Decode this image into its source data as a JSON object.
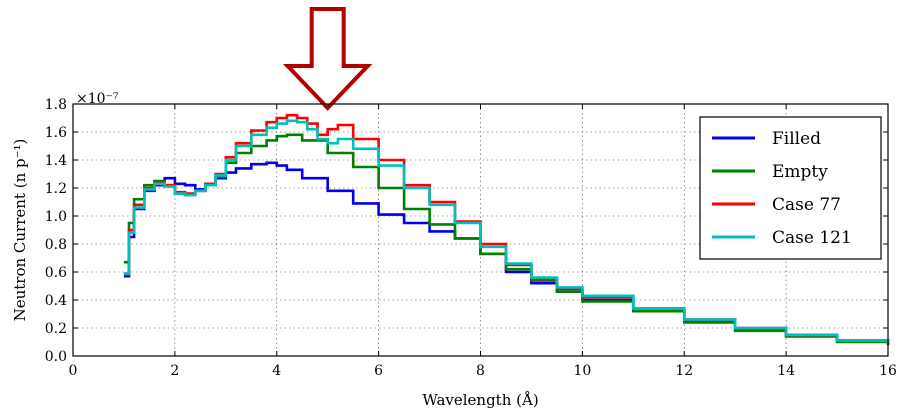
{
  "chart_data": {
    "type": "line",
    "title": "",
    "xlabel": "Wavelength (Å)",
    "ylabel": "Neutron Current (n p⁻¹)",
    "y_multiplier": "×10⁻⁷",
    "xlim": [
      0,
      16
    ],
    "ylim": [
      0.0,
      1.8
    ],
    "xticks": [
      0,
      2,
      4,
      6,
      8,
      10,
      12,
      14,
      16
    ],
    "yticks": [
      0.0,
      0.2,
      0.4,
      0.6,
      0.8,
      1.0,
      1.2,
      1.4,
      1.6,
      1.8
    ],
    "x_tick_labels": [
      "0",
      "2",
      "4",
      "6",
      "8",
      "10",
      "12",
      "14",
      "16"
    ],
    "y_tick_labels": [
      "0.0",
      "0.2",
      "0.4",
      "0.6",
      "0.8",
      "1.0",
      "1.2",
      "1.4",
      "1.6",
      "1.8"
    ],
    "grid": true,
    "legend_position": "top-right",
    "annotation": "red down arrow pointing at ~5 Å",
    "arrow_x": 5.0,
    "series": [
      {
        "name": "Filled",
        "color": "#0000ee",
        "x": [
          1.0,
          1.1,
          1.2,
          1.4,
          1.6,
          1.8,
          2.0,
          2.2,
          2.4,
          2.6,
          2.8,
          3.0,
          3.2,
          3.5,
          3.8,
          4.0,
          4.2,
          4.5,
          5.0,
          5.5,
          6.0,
          6.5,
          7.0,
          7.5,
          8.0,
          8.5,
          9.0,
          9.5,
          10.0,
          11.0,
          12.0,
          13.0,
          14.0,
          15.0,
          16.0
        ],
        "y": [
          0.57,
          0.85,
          1.05,
          1.18,
          1.22,
          1.27,
          1.23,
          1.22,
          1.19,
          1.22,
          1.27,
          1.31,
          1.34,
          1.37,
          1.38,
          1.36,
          1.33,
          1.27,
          1.18,
          1.09,
          1.01,
          0.95,
          0.89,
          0.84,
          0.73,
          0.6,
          0.52,
          0.46,
          0.4,
          0.32,
          0.25,
          0.19,
          0.15,
          0.11,
          0.08
        ]
      },
      {
        "name": "Empty",
        "color": "#008000",
        "x": [
          1.0,
          1.1,
          1.2,
          1.4,
          1.6,
          1.8,
          2.0,
          2.2,
          2.4,
          2.6,
          2.8,
          3.0,
          3.2,
          3.5,
          3.8,
          4.0,
          4.2,
          4.5,
          5.0,
          5.5,
          6.0,
          6.5,
          7.0,
          7.5,
          8.0,
          8.5,
          9.0,
          9.5,
          10.0,
          11.0,
          12.0,
          13.0,
          14.0,
          15.0,
          16.0
        ],
        "y": [
          0.67,
          0.95,
          1.12,
          1.22,
          1.25,
          1.22,
          1.16,
          1.15,
          1.18,
          1.22,
          1.28,
          1.38,
          1.45,
          1.5,
          1.54,
          1.57,
          1.58,
          1.54,
          1.45,
          1.35,
          1.2,
          1.05,
          0.94,
          0.84,
          0.73,
          0.62,
          0.54,
          0.46,
          0.39,
          0.32,
          0.24,
          0.18,
          0.14,
          0.1,
          0.08
        ]
      },
      {
        "name": "Case 77",
        "color": "#ff0000",
        "x": [
          1.0,
          1.1,
          1.2,
          1.4,
          1.6,
          1.8,
          2.0,
          2.2,
          2.4,
          2.6,
          2.8,
          3.0,
          3.2,
          3.5,
          3.8,
          4.0,
          4.2,
          4.4,
          4.6,
          4.8,
          5.0,
          5.2,
          5.5,
          6.0,
          6.5,
          7.0,
          7.5,
          8.0,
          8.5,
          9.0,
          9.5,
          10.0,
          11.0,
          12.0,
          13.0,
          14.0,
          15.0,
          16.0
        ],
        "y": [
          0.58,
          0.9,
          1.08,
          1.2,
          1.24,
          1.22,
          1.17,
          1.16,
          1.18,
          1.23,
          1.3,
          1.42,
          1.52,
          1.61,
          1.67,
          1.7,
          1.72,
          1.7,
          1.66,
          1.58,
          1.62,
          1.65,
          1.55,
          1.4,
          1.22,
          1.1,
          0.96,
          0.8,
          0.65,
          0.55,
          0.48,
          0.42,
          0.34,
          0.26,
          0.2,
          0.15,
          0.11,
          0.08
        ]
      },
      {
        "name": "Case 121",
        "color": "#00bfbf",
        "x": [
          1.0,
          1.1,
          1.2,
          1.4,
          1.6,
          1.8,
          2.0,
          2.2,
          2.4,
          2.6,
          2.8,
          3.0,
          3.2,
          3.5,
          3.8,
          4.0,
          4.2,
          4.4,
          4.6,
          4.8,
          5.0,
          5.2,
          5.5,
          6.0,
          6.5,
          7.0,
          7.5,
          8.0,
          8.5,
          9.0,
          9.5,
          10.0,
          11.0,
          12.0,
          13.0,
          14.0,
          15.0,
          16.0
        ],
        "y": [
          0.59,
          0.88,
          1.06,
          1.19,
          1.23,
          1.21,
          1.16,
          1.15,
          1.18,
          1.22,
          1.29,
          1.4,
          1.5,
          1.58,
          1.63,
          1.66,
          1.68,
          1.67,
          1.62,
          1.55,
          1.52,
          1.55,
          1.48,
          1.36,
          1.2,
          1.08,
          0.95,
          0.78,
          0.66,
          0.56,
          0.49,
          0.43,
          0.34,
          0.26,
          0.2,
          0.15,
          0.11,
          0.09
        ]
      }
    ]
  }
}
